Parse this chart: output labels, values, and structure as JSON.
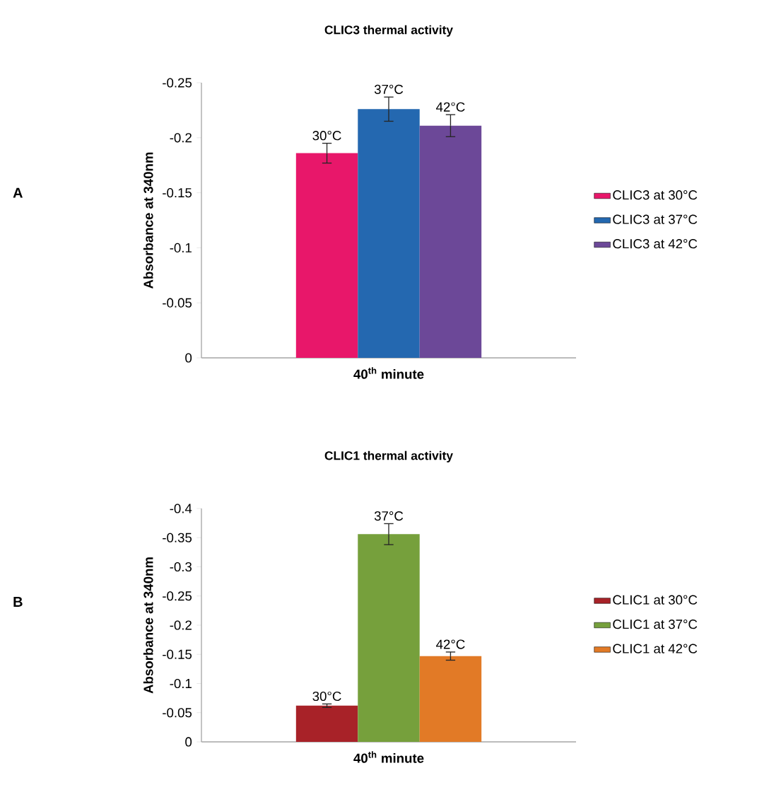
{
  "chart_data": [
    {
      "type": "bar",
      "title": "CLIC3 thermal activity",
      "ylabel": "Absorbance at 340nm",
      "categories": [
        "40$^{th}$ minute"
      ],
      "series": [
        {
          "name": "CLIC3 at 30°C",
          "color": "#e8176a",
          "values": [
            -0.186
          ],
          "errors": [
            0.009
          ]
        },
        {
          "name": "CLIC3 at 37°C",
          "color": "#2468b0",
          "values": [
            -0.226
          ],
          "errors": [
            0.011
          ]
        },
        {
          "name": "CLIC3 at 42°C",
          "color": "#6c4898",
          "values": [
            -0.211
          ],
          "errors": [
            0.01
          ]
        }
      ],
      "ylim": [
        0,
        -0.25
      ],
      "yticks": [
        0,
        -0.05,
        -0.1,
        -0.15,
        -0.2,
        -0.25
      ],
      "legend": "right",
      "annotations": [
        "30°C",
        "37°C",
        "42°C",
        "A"
      ]
    },
    {
      "type": "bar",
      "title": "CLIC1 thermal activity",
      "ylabel": "Absorbance at 340nm",
      "categories": [
        "40$^{th}$ minute"
      ],
      "series": [
        {
          "name": "CLIC1 at 30°C",
          "color": "#a82228",
          "values": [
            -0.062
          ],
          "errors": [
            0.003
          ]
        },
        {
          "name": "CLIC1 at 37°C",
          "color": "#76a03c",
          "values": [
            -0.356
          ],
          "errors": [
            0.018
          ]
        },
        {
          "name": "CLIC1 at 42°C",
          "color": "#e27a26",
          "values": [
            -0.147
          ],
          "errors": [
            0.007
          ]
        }
      ],
      "ylim": [
        0,
        -0.4
      ],
      "yticks": [
        0,
        -0.05,
        -0.1,
        -0.15,
        -0.2,
        -0.25,
        -0.3,
        -0.35,
        -0.4
      ],
      "legend": "right",
      "annotations": [
        "30°C",
        "37°C",
        "42°C",
        "B"
      ]
    }
  ]
}
